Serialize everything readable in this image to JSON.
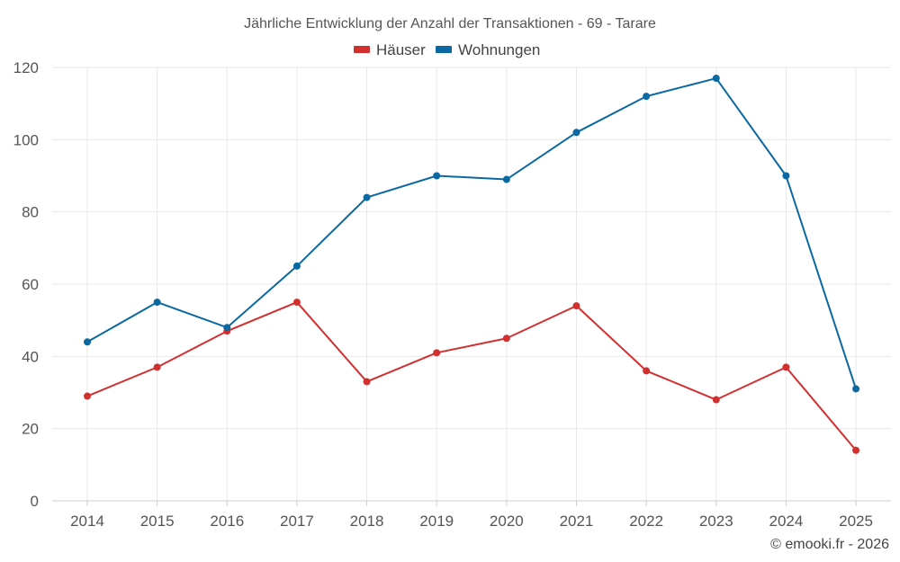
{
  "chart_data": {
    "type": "line",
    "title": "Jährliche Entwicklung der Anzahl der Transaktionen - 69 - Tarare",
    "categories": [
      "2014",
      "2015",
      "2016",
      "2017",
      "2018",
      "2019",
      "2020",
      "2021",
      "2022",
      "2023",
      "2024",
      "2025"
    ],
    "series": [
      {
        "name": "Häuser",
        "color": "#d32f2f",
        "values": [
          29,
          37,
          47,
          55,
          33,
          41,
          45,
          54,
          36,
          28,
          37,
          14
        ]
      },
      {
        "name": "Wohnungen",
        "color": "#0b68a0",
        "values": [
          44,
          55,
          48,
          65,
          84,
          90,
          89,
          102,
          112,
          117,
          90,
          31
        ]
      }
    ],
    "ylim": [
      0,
      120
    ],
    "yticks": [
      "0",
      "20",
      "40",
      "60",
      "80",
      "100",
      "120"
    ],
    "xlabel": "",
    "ylabel": "",
    "grid": true,
    "legend_position": "top-center"
  },
  "credit": "© emooki.fr - 2026"
}
